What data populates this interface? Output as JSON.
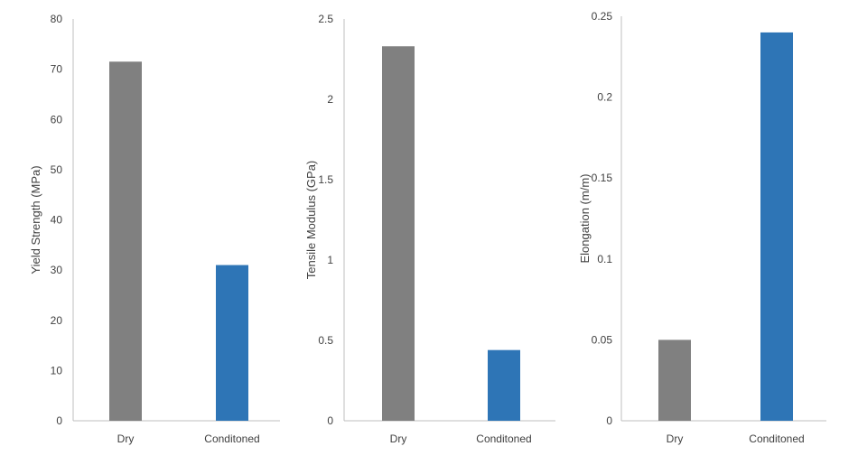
{
  "chart_data": [
    {
      "type": "bar",
      "categories": [
        "Dry",
        "Conditoned"
      ],
      "values": [
        71.5,
        31
      ],
      "ylabel": "Yield Strength (MPa)",
      "ylim": [
        0,
        80
      ],
      "yticks": [
        "0",
        "10",
        "20",
        "30",
        "40",
        "50",
        "60",
        "70",
        "80"
      ],
      "colors": [
        "#808080",
        "#2e75b6"
      ],
      "grid": false
    },
    {
      "type": "bar",
      "categories": [
        "Dry",
        "Conditoned"
      ],
      "values": [
        2.33,
        0.44
      ],
      "ylabel": "Tensile Modulus (GPa)",
      "ylim": [
        0,
        2.5
      ],
      "yticks": [
        "0",
        "0.5",
        "1",
        "1.5",
        "2",
        "2.5"
      ],
      "colors": [
        "#808080",
        "#2e75b6"
      ],
      "grid": false
    },
    {
      "type": "bar",
      "categories": [
        "Dry",
        "Conditoned"
      ],
      "values": [
        0.05,
        0.24
      ],
      "ylabel": "Elongation (m/m)",
      "ylim": [
        0,
        0.25
      ],
      "yticks": [
        "0",
        "0.05",
        "0.1",
        "0.15",
        "0.2",
        "0.25"
      ],
      "colors": [
        "#808080",
        "#2e75b6"
      ],
      "grid": false
    }
  ]
}
